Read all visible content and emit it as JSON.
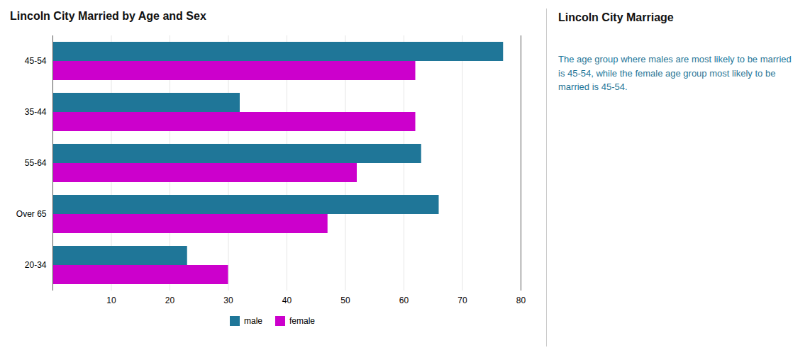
{
  "chart_data": {
    "type": "bar",
    "orientation": "horizontal",
    "title": "Lincoln City Married by Age and Sex",
    "categories": [
      "45-54",
      "35-44",
      "55-64",
      "Over 65",
      "20-34"
    ],
    "series": [
      {
        "name": "male",
        "color": "#1f7698",
        "values": [
          77,
          32,
          63,
          66,
          23
        ]
      },
      {
        "name": "female",
        "color": "#cc00cc",
        "values": [
          62,
          62,
          52,
          47,
          30
        ]
      }
    ],
    "xlim": [
      0,
      80
    ],
    "xticks": [
      10,
      20,
      30,
      40,
      50,
      60,
      70,
      80
    ],
    "grid": true,
    "legend": "bottom",
    "annotations": [
      "Lincoln City Marriage",
      "The age group where males are most likely to be married is 45-54, while the female age group most likely to be married is 45-54."
    ]
  }
}
